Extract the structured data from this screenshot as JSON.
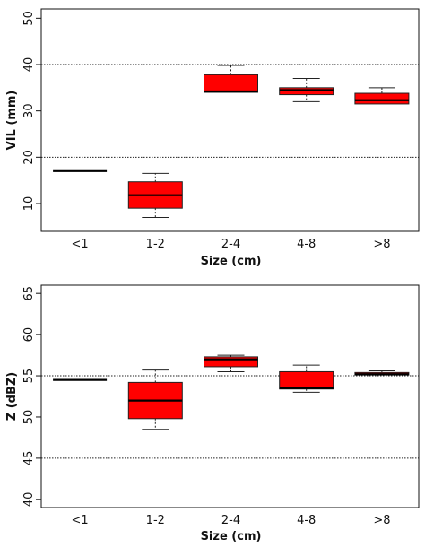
{
  "chart_data": [
    {
      "type": "box",
      "xlabel": "Size (cm)",
      "ylabel": "VIL (mm)",
      "categories": [
        "<1",
        "1-2",
        "2-4",
        "4-8",
        ">8"
      ],
      "ylim": [
        4,
        52
      ],
      "yticks": [
        10,
        20,
        30,
        40,
        50
      ],
      "reference_lines": [
        20,
        40
      ],
      "box_color": "#ff0000",
      "boxes": [
        {
          "min": 17,
          "q1": 17,
          "median": 17,
          "q3": 17,
          "max": 17
        },
        {
          "min": 7,
          "q1": 9,
          "median": 11.8,
          "q3": 14.7,
          "max": 16.5
        },
        {
          "min": 34,
          "q1": 34,
          "median": 34.2,
          "q3": 37.8,
          "max": 39.8
        },
        {
          "min": 32,
          "q1": 33.5,
          "median": 34.5,
          "q3": 35,
          "max": 37
        },
        {
          "min": 31.5,
          "q1": 31.5,
          "median": 32.3,
          "q3": 33.8,
          "max": 35
        }
      ]
    },
    {
      "type": "box",
      "xlabel": "Size (cm)",
      "ylabel": "Z (dBZ)",
      "categories": [
        "<1",
        "1-2",
        "2-4",
        "4-8",
        ">8"
      ],
      "ylim": [
        39,
        66
      ],
      "yticks": [
        40,
        45,
        50,
        55,
        60,
        65
      ],
      "reference_lines": [
        45,
        55
      ],
      "box_color": "#ff0000",
      "boxes": [
        {
          "min": 54.5,
          "q1": 54.5,
          "median": 54.5,
          "q3": 54.5,
          "max": 54.5
        },
        {
          "min": 48.5,
          "q1": 49.8,
          "median": 52,
          "q3": 54.2,
          "max": 55.7
        },
        {
          "min": 55.5,
          "q1": 56.1,
          "median": 57,
          "q3": 57.3,
          "max": 57.5
        },
        {
          "min": 53,
          "q1": 53.4,
          "median": 53.5,
          "q3": 55.5,
          "max": 56.3
        },
        {
          "min": 55.1,
          "q1": 55.1,
          "median": 55.2,
          "q3": 55.4,
          "max": 55.6
        }
      ]
    }
  ]
}
